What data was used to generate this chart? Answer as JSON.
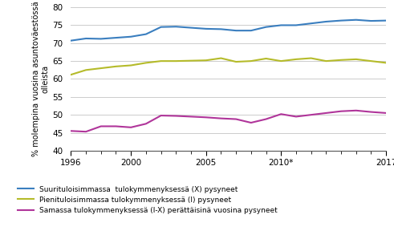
{
  "years": [
    1996,
    1997,
    1998,
    1999,
    2000,
    2001,
    2002,
    2003,
    2004,
    2005,
    2006,
    2007,
    2008,
    2009,
    2010,
    2011,
    2012,
    2013,
    2014,
    2015,
    2016,
    2017
  ],
  "blue": [
    70.7,
    71.3,
    71.2,
    71.5,
    71.8,
    72.5,
    74.5,
    74.6,
    74.3,
    74.0,
    73.9,
    73.5,
    73.5,
    74.5,
    75.0,
    75.0,
    75.5,
    76.0,
    76.3,
    76.5,
    76.2,
    76.3
  ],
  "yellow": [
    61.2,
    62.5,
    63.0,
    63.5,
    63.8,
    64.5,
    65.0,
    65.0,
    65.1,
    65.2,
    65.8,
    64.8,
    65.0,
    65.7,
    65.0,
    65.5,
    65.8,
    65.0,
    65.3,
    65.5,
    65.0,
    64.5
  ],
  "magenta": [
    45.5,
    45.3,
    46.8,
    46.8,
    46.5,
    47.5,
    49.8,
    49.7,
    49.5,
    49.3,
    49.0,
    48.8,
    47.8,
    48.8,
    50.2,
    49.5,
    50.0,
    50.5,
    51.0,
    51.2,
    50.8,
    50.5
  ],
  "blue_color": "#3a7ebf",
  "yellow_color": "#b5bb2a",
  "magenta_color": "#b0359a",
  "ylabel": "% molempina vuosina asuntoväestössä\nolleista",
  "ylim": [
    40,
    80
  ],
  "yticks": [
    40,
    45,
    50,
    55,
    60,
    65,
    70,
    75,
    80
  ],
  "xtick_positions": [
    1996,
    2000,
    2005,
    2010,
    2017
  ],
  "xtick_labels": [
    "1996",
    "2000",
    "2005",
    "2010*",
    "2017"
  ],
  "xtick_minor": [
    1996,
    1997,
    1998,
    1999,
    2000,
    2001,
    2002,
    2003,
    2004,
    2005,
    2006,
    2007,
    2008,
    2009,
    2010,
    2011,
    2012,
    2013,
    2014,
    2015,
    2016,
    2017
  ],
  "legend_blue": "Suurituloisimmassa  tulokymmenyksessä (X) pysyneet",
  "legend_yellow": "Pienituloisimmassa tulokymmenyksessä (I) pysyneet",
  "legend_magenta": "Samassa tulokymmenyksessä (I-X) perättäisinä vuosina pysyneet",
  "background_color": "#ffffff",
  "grid_color": "#cccccc"
}
